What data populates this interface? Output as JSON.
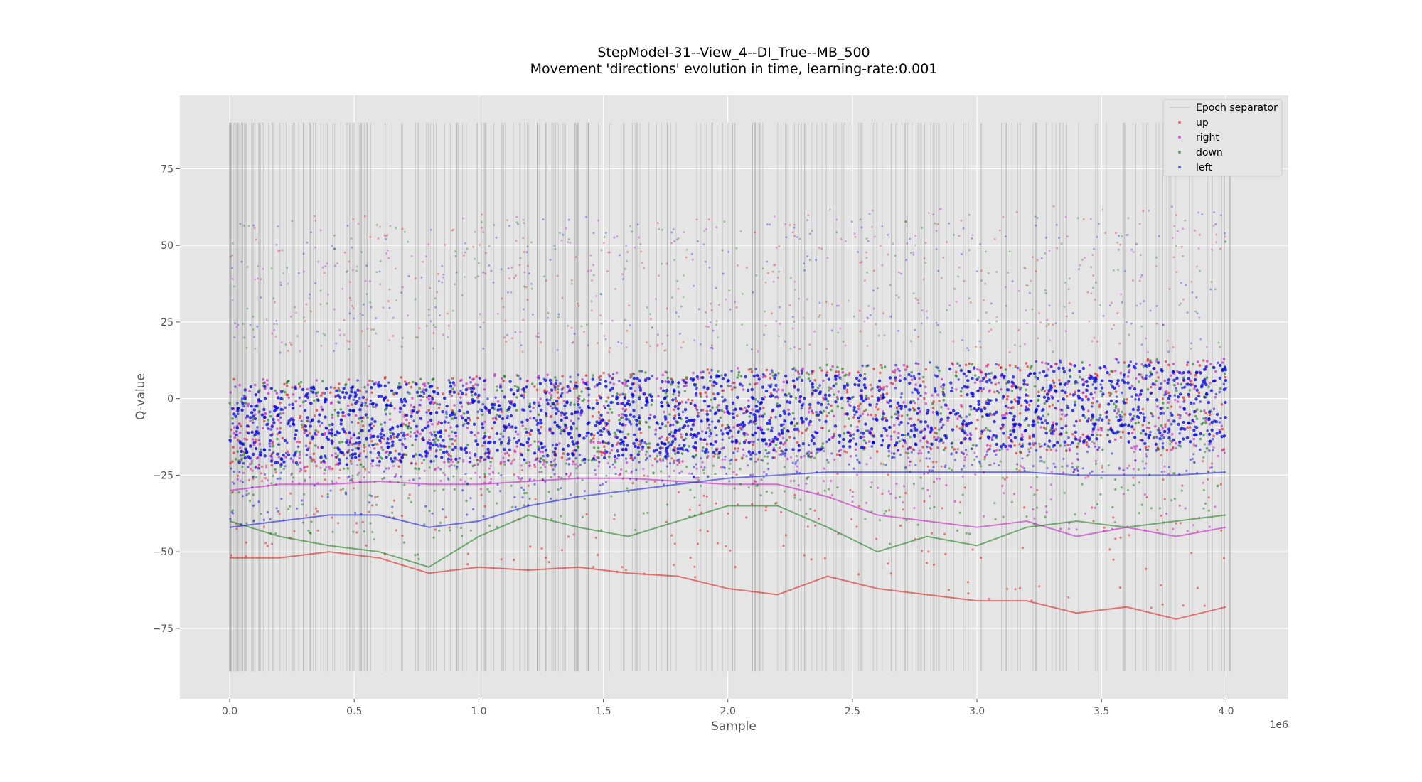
{
  "chart_data": {
    "type": "scatter",
    "title": "StepModel-31--View_4--DI_True--MB_500",
    "subtitle": "Movement 'directions' evolution in time, learning-rate:0.001",
    "xlabel": "Sample",
    "ylabel": "Q-value",
    "x_offset_label": "1e6",
    "xlim": [
      -200000,
      4250000
    ],
    "ylim": [
      -98,
      99
    ],
    "x_ticks": [
      0,
      500000,
      1000000,
      1500000,
      2000000,
      2500000,
      3000000,
      3500000,
      4000000
    ],
    "x_tick_labels": [
      "0.0",
      "0.5",
      "1.0",
      "1.5",
      "2.0",
      "2.5",
      "3.0",
      "3.5",
      "4.0"
    ],
    "y_ticks": [
      -75,
      -50,
      -25,
      0,
      25,
      50,
      75
    ],
    "y_tick_labels": [
      "−75",
      "−50",
      "−25",
      "0",
      "25",
      "50",
      "75"
    ],
    "grid": true,
    "legend_position": "top-right",
    "epoch_separator": {
      "name": "Epoch separator",
      "color": "#808080",
      "x_range": [
        0,
        4050000
      ],
      "y_range": [
        -89,
        90
      ]
    },
    "series": [
      {
        "name": "up",
        "color": "#e00000",
        "x": [
          0,
          200000,
          400000,
          600000,
          800000,
          1000000,
          1200000,
          1400000,
          1600000,
          1800000,
          2000000,
          2200000,
          2400000,
          2600000,
          2800000,
          3000000,
          3200000,
          3400000,
          3600000,
          3800000,
          4000000
        ],
        "y_center": [
          -8,
          -9,
          -9,
          -8,
          -8,
          -7,
          -7,
          -7,
          -6,
          -6,
          -5,
          -5,
          -4,
          -4,
          -3,
          -3,
          -3,
          -2,
          -2,
          -2,
          -2
        ],
        "y_lower_envelope": [
          -52,
          -52,
          -50,
          -52,
          -57,
          -55,
          -56,
          -55,
          -57,
          -58,
          -62,
          -64,
          -58,
          -62,
          -64,
          -66,
          -66,
          -70,
          -68,
          -72,
          -68
        ],
        "y_upper_envelope": [
          65,
          60,
          60,
          60,
          60,
          60,
          60,
          60,
          60,
          60,
          60,
          60,
          62,
          62,
          62,
          62,
          63,
          63,
          63,
          63,
          62
        ]
      },
      {
        "name": "right",
        "color": "#c000c0",
        "x": [
          0,
          200000,
          400000,
          600000,
          800000,
          1000000,
          1200000,
          1400000,
          1600000,
          1800000,
          2000000,
          2200000,
          2400000,
          2600000,
          2800000,
          3000000,
          3200000,
          3400000,
          3600000,
          3800000,
          4000000
        ],
        "y_center": [
          -8,
          -9,
          -9,
          -8,
          -8,
          -7,
          -7,
          -7,
          -6,
          -6,
          -5,
          -5,
          -4,
          -4,
          -3,
          -3,
          -3,
          -2,
          -2,
          -2,
          -2
        ],
        "y_lower_envelope": [
          -30,
          -28,
          -28,
          -27,
          -28,
          -28,
          -27,
          -26,
          -26,
          -27,
          -28,
          -28,
          -32,
          -38,
          -40,
          -42,
          -40,
          -45,
          -42,
          -45,
          -42
        ],
        "y_upper_envelope": [
          62,
          60,
          60,
          60,
          60,
          60,
          60,
          60,
          60,
          60,
          60,
          60,
          62,
          62,
          62,
          62,
          63,
          63,
          63,
          63,
          62
        ]
      },
      {
        "name": "down",
        "color": "#007000",
        "x": [
          0,
          200000,
          400000,
          600000,
          800000,
          1000000,
          1200000,
          1400000,
          1600000,
          1800000,
          2000000,
          2200000,
          2400000,
          2600000,
          2800000,
          3000000,
          3200000,
          3400000,
          3600000,
          3800000,
          4000000
        ],
        "y_center": [
          -8,
          -9,
          -9,
          -8,
          -8,
          -7,
          -7,
          -7,
          -6,
          -6,
          -5,
          -5,
          -4,
          -4,
          -3,
          -3,
          -3,
          -2,
          -2,
          -2,
          -2
        ],
        "y_lower_envelope": [
          -40,
          -45,
          -48,
          -50,
          -55,
          -45,
          -38,
          -42,
          -45,
          -40,
          -35,
          -35,
          -42,
          -50,
          -45,
          -48,
          -42,
          -40,
          -42,
          -40,
          -38
        ],
        "y_upper_envelope": [
          58,
          58,
          58,
          58,
          58,
          58,
          58,
          58,
          58,
          58,
          58,
          58,
          60,
          60,
          60,
          60,
          60,
          60,
          60,
          60,
          60
        ]
      },
      {
        "name": "left",
        "color": "#0000e0",
        "x": [
          0,
          200000,
          400000,
          600000,
          800000,
          1000000,
          1200000,
          1400000,
          1600000,
          1800000,
          2000000,
          2200000,
          2400000,
          2600000,
          2800000,
          3000000,
          3200000,
          3400000,
          3600000,
          3800000,
          4000000
        ],
        "y_center": [
          -8,
          -9,
          -9,
          -8,
          -8,
          -7,
          -7,
          -7,
          -6,
          -6,
          -5,
          -5,
          -4,
          -4,
          -3,
          -3,
          -3,
          -2,
          -2,
          -2,
          -2
        ],
        "y_lower_envelope": [
          -42,
          -40,
          -38,
          -38,
          -42,
          -40,
          -35,
          -32,
          -30,
          -28,
          -26,
          -25,
          -24,
          -24,
          -24,
          -24,
          -24,
          -25,
          -25,
          -25,
          -24
        ],
        "y_upper_envelope": [
          60,
          60,
          60,
          60,
          60,
          60,
          60,
          60,
          60,
          60,
          60,
          60,
          62,
          62,
          62,
          62,
          63,
          63,
          63,
          63,
          62
        ]
      }
    ]
  }
}
